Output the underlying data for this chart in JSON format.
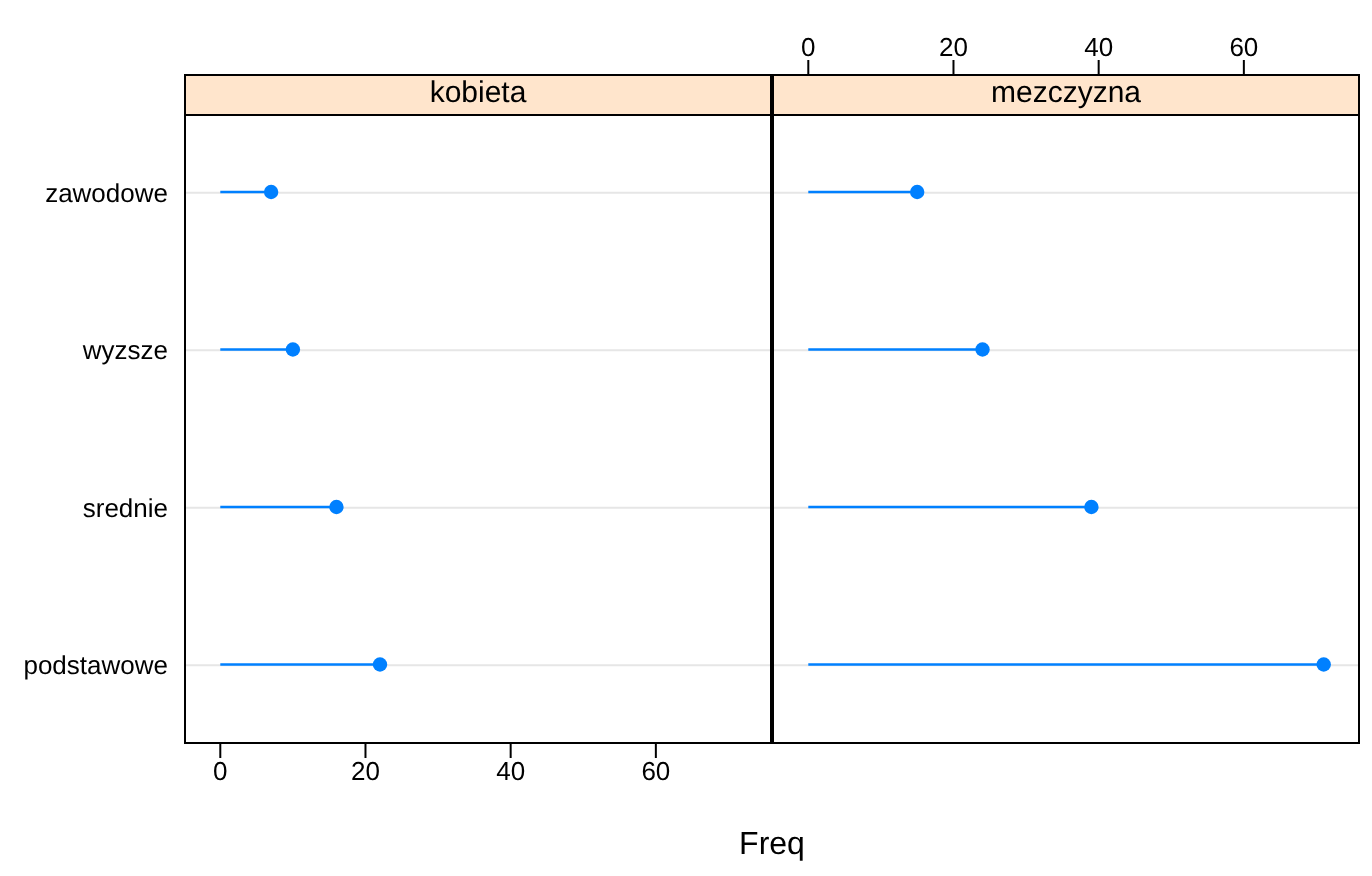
{
  "chart_data": [
    {
      "type": "lollipop",
      "title": "kobieta",
      "orientation": "horizontal",
      "categories": [
        "zawodowe",
        "wyzsze",
        "srednie",
        "podstawowe"
      ],
      "values": [
        7,
        10,
        16,
        22
      ],
      "color": "#0080ff",
      "xlim": [
        -5,
        76
      ],
      "xticks": [
        0,
        20,
        40,
        60
      ],
      "xlabel": "Freq",
      "grid": "y",
      "marker": "circle"
    },
    {
      "type": "lollipop",
      "title": "mezczyzna",
      "orientation": "horizontal",
      "categories": [
        null,
        null,
        null,
        null
      ],
      "values": [
        15,
        24,
        39,
        71
      ],
      "color": "#0080ff",
      "xlim": [
        -5,
        76
      ],
      "xticks": [
        0,
        20,
        40,
        60
      ],
      "grid": "y",
      "marker": "circle",
      "tick_labels": "x"
    }
  ]
}
